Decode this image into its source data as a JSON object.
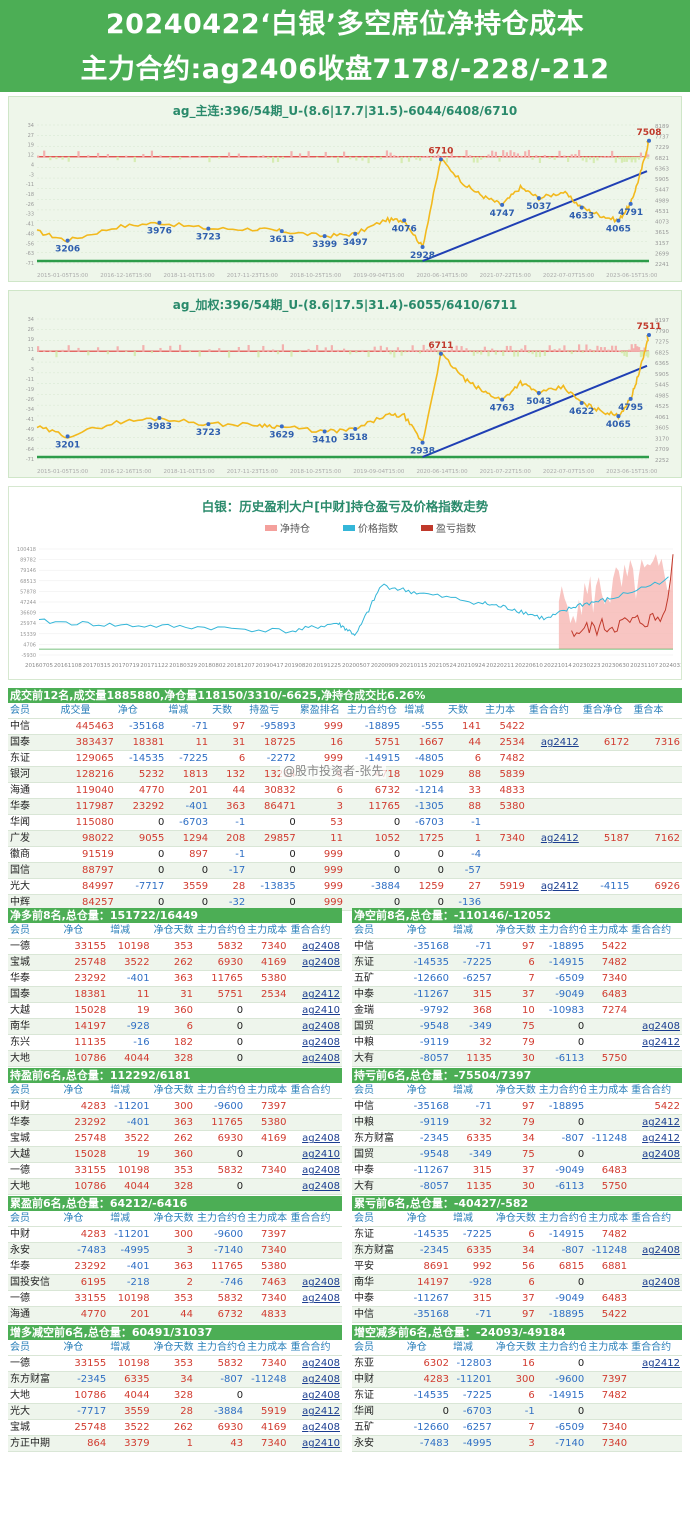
{
  "header": {
    "line1": "20240422‘白银’多空席位净持仓成本",
    "line2": "主力合约:ag2406收盘7178/-228/-212"
  },
  "chart1": {
    "title": "ag_主连:396/54期_U-(8.6|17.7|31.5)-6044/6408/6710",
    "peaks": [
      "3206",
      "3976",
      "3723",
      "3613",
      "3399",
      "3497",
      "4076",
      "2928",
      "6710",
      "4747",
      "5037",
      "4633",
      "4065",
      "4791",
      "7508"
    ],
    "xticks": [
      "2015-01-05T15:00",
      "2016-12-16T15:00",
      "2018-11-01T15:00",
      "2017-11-23T15:00",
      "2018-10-25T15:00",
      "2019-09-04T15:00",
      "2020-06-14T15:00",
      "2021-07-22T15:00",
      "2022-07-07T15:00",
      "2023-06-15T15:00"
    ],
    "rticks": [
      "8189",
      "7737",
      "7229",
      "6821",
      "6363",
      "5905",
      "5447",
      "4989",
      "4531",
      "4073",
      "3615",
      "3157",
      "2699",
      "2241"
    ],
    "lticks": [
      "34",
      "27",
      "19",
      "12",
      "4",
      "-3",
      "-11",
      "-18",
      "-26",
      "-33",
      "-41",
      "-48",
      "-56",
      "-63",
      "-71"
    ]
  },
  "chart2": {
    "title": "ag_加权:396/54期_U-(8.6|17.5|31.4)-6055/6410/6711",
    "peaks": [
      "3201",
      "3983",
      "3723",
      "3629",
      "3410",
      "3518",
      "2938",
      "6711",
      "4763",
      "5043",
      "4622",
      "4065",
      "4795",
      "7511"
    ],
    "xticks": [
      "2015-01-05T15:00",
      "2016-12-16T15:00",
      "2018-11-01T15:00",
      "2017-11-23T15:00",
      "2018-10-25T15:00",
      "2019-09-04T15:00",
      "2020-06-14T15:00",
      "2021-07-22T15:00",
      "2022-07-07T15:00",
      "2023-06-15T15:00"
    ],
    "rticks": [
      "8197",
      "7790",
      "7275",
      "6825",
      "6365",
      "5905",
      "5445",
      "4985",
      "4525",
      "4061",
      "3605",
      "3170",
      "2709",
      "2252"
    ],
    "lticks": [
      "34",
      "26",
      "19",
      "11",
      "4",
      "-3",
      "-11",
      "-19",
      "-26",
      "-34",
      "-41",
      "-49",
      "-56",
      "-64",
      "-71"
    ]
  },
  "chart3": {
    "title": "白银：历史盈利大户[中财]持仓盈亏及价格指数走势",
    "legend": [
      "净持仓",
      "价格指数",
      "盈亏指数"
    ],
    "lticks": [
      "100418",
      "89782",
      "79146",
      "68513",
      "57878",
      "47244",
      "36609",
      "25974",
      "15339",
      "4706",
      "-5930"
    ],
    "xticks": [
      "20160705",
      "20161108",
      "20170315",
      "20170719",
      "20171122",
      "20180329",
      "20180802",
      "20181207",
      "20190417",
      "20190820",
      "20191225",
      "20200507",
      "20200909",
      "20210115",
      "20210524",
      "20210924",
      "20220211",
      "20220610",
      "20221014",
      "20230223",
      "20230630",
      "20231107",
      "20240314"
    ]
  },
  "watermark": "@股市投资者-张先",
  "colors": {
    "green": "#4cae55",
    "red": "#e03a3a",
    "blue": "#2f6fc4",
    "gold": "#f2b91d"
  },
  "t_main": {
    "title": "成交前12名,成交量1885880,净仓量118150/3310/-6625,净持仓成交比6.26%",
    "head": [
      "会员",
      "成交量",
      "净仓",
      "增减",
      "天数",
      "持盈亏",
      "累盈排名",
      "主力合约仓",
      "增减",
      "天数",
      "主力本",
      "重合合约",
      "重合净仓",
      "重合本"
    ],
    "rows": [
      [
        "中信",
        "445463",
        "-35168",
        "-71",
        "97",
        "-95893",
        "999",
        "-18895",
        "-555",
        "141",
        "5422",
        "",
        "",
        ""
      ],
      [
        "国泰",
        "383437",
        "18381",
        "11",
        "31",
        "18725",
        "16",
        "5751",
        "1667",
        "44",
        "2534",
        "ag2412",
        "6172",
        "7316"
      ],
      [
        "东证",
        "129065",
        "-14535",
        "-7225",
        "6",
        "-2272",
        "999",
        "-14915",
        "-4805",
        "6",
        "7482",
        "",
        "",
        ""
      ],
      [
        "银河",
        "128216",
        "5232",
        "1813",
        "132",
        "13264",
        "6",
        "4718",
        "1029",
        "88",
        "5839",
        "",
        "",
        ""
      ],
      [
        "海通",
        "119040",
        "4770",
        "201",
        "44",
        "30832",
        "6",
        "6732",
        "-1214",
        "33",
        "4833",
        "",
        "",
        ""
      ],
      [
        "华泰",
        "117987",
        "23292",
        "-401",
        "363",
        "86471",
        "3",
        "11765",
        "-1305",
        "88",
        "5380",
        "",
        "",
        ""
      ],
      [
        "华闻",
        "115080",
        "0",
        "-6703",
        "-1",
        "0",
        "53",
        "0",
        "-6703",
        "-1",
        "",
        "",
        "",
        ""
      ],
      [
        "广发",
        "98022",
        "9055",
        "1294",
        "208",
        "29857",
        "11",
        "1052",
        "1725",
        "1",
        "7340",
        "ag2412",
        "5187",
        "7162"
      ],
      [
        "徽商",
        "91519",
        "0",
        "897",
        "-1",
        "0",
        "999",
        "0",
        "0",
        "-4",
        "",
        "",
        "",
        ""
      ],
      [
        "国信",
        "88797",
        "0",
        "0",
        "-17",
        "0",
        "999",
        "0",
        "0",
        "-57",
        "",
        "",
        "",
        ""
      ],
      [
        "光大",
        "84997",
        "-7717",
        "3559",
        "28",
        "-13835",
        "999",
        "-3884",
        "1259",
        "27",
        "5919",
        "ag2412",
        "-4115",
        "6926"
      ],
      [
        "中辉",
        "84257",
        "0",
        "0",
        "-32",
        "0",
        "999",
        "0",
        "0",
        "-136",
        "",
        "",
        "",
        ""
      ]
    ]
  },
  "t_net_long": {
    "title": "净多前8名,总仓量：151722/16449",
    "head": [
      "会员",
      "净仓",
      "增减",
      "净仓天数",
      "主力合约仓",
      "主力成本",
      "重合合约"
    ],
    "rows": [
      [
        "一德",
        "33155",
        "10198",
        "353",
        "5832",
        "7340",
        "ag2408"
      ],
      [
        "宝城",
        "25748",
        "3522",
        "262",
        "6930",
        "4169",
        "ag2408"
      ],
      [
        "华泰",
        "23292",
        "-401",
        "363",
        "11765",
        "5380",
        ""
      ],
      [
        "国泰",
        "18381",
        "11",
        "31",
        "5751",
        "2534",
        "ag2412"
      ],
      [
        "大越",
        "15028",
        "19",
        "360",
        "0",
        "",
        "ag2410"
      ],
      [
        "南华",
        "14197",
        "-928",
        "6",
        "0",
        "",
        "ag2408"
      ],
      [
        "东兴",
        "11135",
        "-16",
        "182",
        "0",
        "",
        "ag2408"
      ],
      [
        "大地",
        "10786",
        "4044",
        "328",
        "0",
        "",
        "ag2408"
      ]
    ]
  },
  "t_net_short": {
    "title": "净空前8名,总仓量：-110146/-12052",
    "head": [
      "会员",
      "净仓",
      "增减",
      "净仓天数",
      "主力合约仓",
      "主力成本",
      "重合合约"
    ],
    "rows": [
      [
        "中信",
        "-35168",
        "-71",
        "97",
        "-18895",
        "5422",
        ""
      ],
      [
        "东证",
        "-14535",
        "-7225",
        "6",
        "-14915",
        "7482",
        ""
      ],
      [
        "五矿",
        "-12660",
        "-6257",
        "7",
        "-6509",
        "7340",
        ""
      ],
      [
        "中泰",
        "-11267",
        "315",
        "37",
        "-9049",
        "6483",
        ""
      ],
      [
        "金瑞",
        "-9792",
        "368",
        "10",
        "-10983",
        "7274",
        ""
      ],
      [
        "国贸",
        "-9548",
        "-349",
        "75",
        "0",
        "",
        "ag2408"
      ],
      [
        "中粮",
        "-9119",
        "32",
        "79",
        "0",
        "",
        "ag2412"
      ],
      [
        "大有",
        "-8057",
        "1135",
        "30",
        "-6113",
        "5750",
        ""
      ]
    ]
  },
  "t_profit": {
    "title": "持盈前6名,总仓量：112292/6181",
    "head": [
      "会员",
      "净仓",
      "增减",
      "净仓天数",
      "主力合约仓",
      "主力成本",
      "重合合约"
    ],
    "rows": [
      [
        "中财",
        "4283",
        "-11201",
        "300",
        "-9600",
        "7397",
        ""
      ],
      [
        "华泰",
        "23292",
        "-401",
        "363",
        "11765",
        "5380",
        ""
      ],
      [
        "宝城",
        "25748",
        "3522",
        "262",
        "6930",
        "4169",
        "ag2408"
      ],
      [
        "大越",
        "15028",
        "19",
        "360",
        "0",
        "",
        "ag2410"
      ],
      [
        "一德",
        "33155",
        "10198",
        "353",
        "5832",
        "7340",
        "ag2408"
      ],
      [
        "大地",
        "10786",
        "4044",
        "328",
        "0",
        "",
        "ag2408"
      ]
    ]
  },
  "t_loss": {
    "title": "持亏前6名,总仓量：-75504/7397",
    "head": [
      "会员",
      "净仓",
      "增减",
      "净仓天数",
      "主力合约仓",
      "主力成本",
      "重合合约"
    ],
    "rows": [
      [
        "中信",
        "-35168",
        "-71",
        "97",
        "-18895",
        "",
        "5422"
      ],
      [
        "中粮",
        "-9119",
        "32",
        "79",
        "0",
        "",
        "ag2412"
      ],
      [
        "东方财富",
        "-2345",
        "6335",
        "34",
        "-807",
        "-11248",
        "ag2412"
      ],
      [
        "国贸",
        "-9548",
        "-349",
        "75",
        "0",
        "",
        "ag2408"
      ],
      [
        "中泰",
        "-11267",
        "315",
        "37",
        "-9049",
        "6483",
        ""
      ],
      [
        "大有",
        "-8057",
        "1135",
        "30",
        "-6113",
        "5750",
        ""
      ]
    ]
  },
  "t_cum_profit": {
    "title": "累盈前6名,总仓量：64212/-6416",
    "head": [
      "会员",
      "净仓",
      "增减",
      "净仓天数",
      "主力合约仓",
      "主力成本",
      "重合合约"
    ],
    "rows": [
      [
        "中财",
        "4283",
        "-11201",
        "300",
        "-9600",
        "7397",
        ""
      ],
      [
        "永安",
        "-7483",
        "-4995",
        "3",
        "-7140",
        "7340",
        ""
      ],
      [
        "华泰",
        "23292",
        "-401",
        "363",
        "11765",
        "5380",
        ""
      ],
      [
        "国投安信",
        "6195",
        "-218",
        "2",
        "-746",
        "7463",
        "ag2408"
      ],
      [
        "一德",
        "33155",
        "10198",
        "353",
        "5832",
        "7340",
        "ag2408"
      ],
      [
        "海通",
        "4770",
        "201",
        "44",
        "6732",
        "4833",
        ""
      ]
    ]
  },
  "t_cum_loss": {
    "title": "累亏前6名,总仓量：-40427/-582",
    "head": [
      "会员",
      "净仓",
      "增减",
      "净仓天数",
      "主力合约仓",
      "主力成本",
      "重合合约"
    ],
    "rows": [
      [
        "东证",
        "-14535",
        "-7225",
        "6",
        "-14915",
        "7482",
        ""
      ],
      [
        "东方财富",
        "-2345",
        "6335",
        "34",
        "-807",
        "-11248",
        "ag2408"
      ],
      [
        "平安",
        "8691",
        "992",
        "56",
        "6815",
        "6881",
        ""
      ],
      [
        "南华",
        "14197",
        "-928",
        "6",
        "0",
        "",
        "ag2408"
      ],
      [
        "中泰",
        "-11267",
        "315",
        "37",
        "-9049",
        "6483",
        ""
      ],
      [
        "中信",
        "-35168",
        "-71",
        "97",
        "-18895",
        "5422",
        ""
      ]
    ]
  },
  "t_add_long": {
    "title": "增多减空前6名,总仓量：60491/31037",
    "head": [
      "会员",
      "净仓",
      "增减",
      "净仓天数",
      "主力合约仓",
      "主力成本",
      "重合合约"
    ],
    "rows": [
      [
        "一德",
        "33155",
        "10198",
        "353",
        "5832",
        "7340",
        "ag2408"
      ],
      [
        "东方财富",
        "-2345",
        "6335",
        "34",
        "-807",
        "-11248",
        "ag2408"
      ],
      [
        "大地",
        "10786",
        "4044",
        "328",
        "0",
        "",
        "ag2408"
      ],
      [
        "光大",
        "-7717",
        "3559",
        "28",
        "-3884",
        "5919",
        "ag2412"
      ],
      [
        "宝城",
        "25748",
        "3522",
        "262",
        "6930",
        "4169",
        "ag2408"
      ],
      [
        "方正中期",
        "864",
        "3379",
        "1",
        "43",
        "7340",
        "ag2410"
      ]
    ]
  },
  "t_add_short": {
    "title": "增空减多前6名,总仓量：-24093/-49184",
    "head": [
      "会员",
      "净仓",
      "增减",
      "净仓天数",
      "主力合约仓",
      "主力成本",
      "重合合约"
    ],
    "rows": [
      [
        "东亚",
        "6302",
        "-12803",
        "16",
        "0",
        "",
        "ag2412"
      ],
      [
        "中财",
        "4283",
        "-11201",
        "300",
        "-9600",
        "7397",
        ""
      ],
      [
        "东证",
        "-14535",
        "-7225",
        "6",
        "-14915",
        "7482",
        ""
      ],
      [
        "华闻",
        "0",
        "-6703",
        "-1",
        "0",
        "",
        ""
      ],
      [
        "五矿",
        "-12660",
        "-6257",
        "7",
        "-6509",
        "7340",
        ""
      ],
      [
        "永安",
        "-7483",
        "-4995",
        "3",
        "-7140",
        "7340",
        ""
      ]
    ]
  },
  "chart_data": [
    {
      "type": "line",
      "title": "ag_主连:396/54期_U-(8.6|17.7|31.5)-6044/6408/6710",
      "series": [],
      "peaks": [
        3206,
        3976,
        3723,
        3613,
        3399,
        3497,
        4076,
        2928,
        6710,
        4747,
        5037,
        4633,
        4065,
        4791,
        7508
      ],
      "ylim": [
        2241,
        8189
      ]
    },
    {
      "type": "line",
      "title": "ag_加权:396/54期_U-(8.6|17.5|31.4)-6055/6410/6711",
      "series": [],
      "peaks": [
        3201,
        3983,
        3723,
        3629,
        3410,
        3518,
        2938,
        6711,
        4763,
        5043,
        4622,
        4065,
        4795,
        7511
      ],
      "ylim": [
        2252,
        8197
      ]
    },
    {
      "type": "area",
      "title": "白银：历史盈利大户[中财]持仓盈亏及价格指数走势",
      "series": [
        {
          "name": "净持仓"
        },
        {
          "name": "价格指数"
        },
        {
          "name": "盈亏指数"
        }
      ],
      "ylim": [
        -5930,
        100418
      ]
    }
  ]
}
